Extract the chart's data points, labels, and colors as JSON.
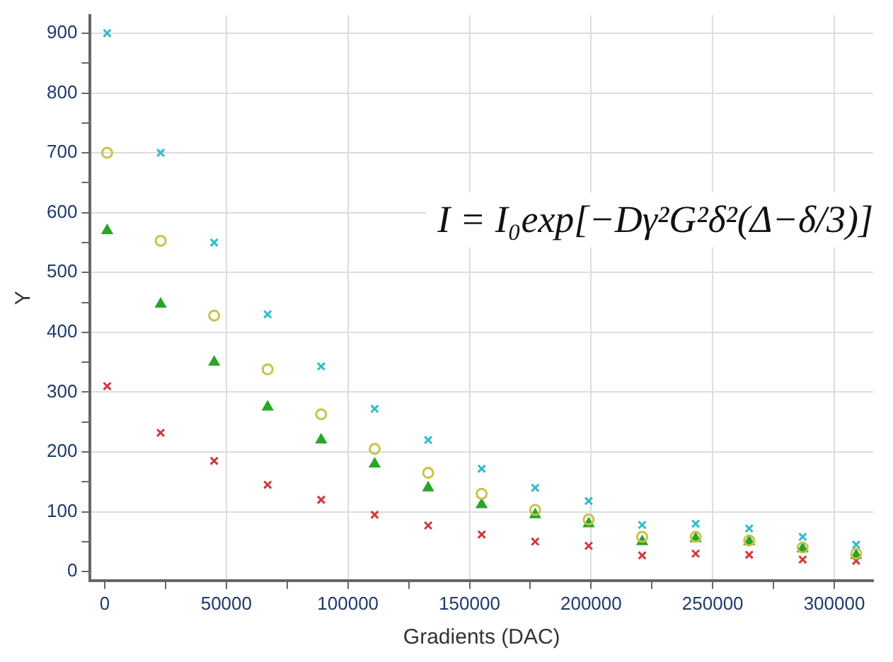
{
  "chart_data": {
    "type": "scatter",
    "xlabel": "Gradients (DAC)",
    "ylabel": "Y",
    "x": [
      1000,
      23000,
      45000,
      67000,
      89000,
      111000,
      133000,
      155000,
      177000,
      199000,
      221000,
      243000,
      265000,
      287000,
      309000
    ],
    "series": [
      {
        "color": "#2fbccc",
        "marker": "cross",
        "values": [
          900,
          700,
          550,
          430,
          343,
          272,
          220,
          172,
          140,
          118,
          78,
          80,
          72,
          58,
          45
        ]
      },
      {
        "color": "#c8c24a",
        "marker": "circle",
        "values": [
          700,
          553,
          428,
          338,
          263,
          205,
          165,
          130,
          103,
          87,
          58,
          58,
          52,
          40,
          30
        ]
      },
      {
        "color": "#2aa52a",
        "marker": "triangle",
        "values": [
          570,
          447,
          350,
          275,
          220,
          180,
          140,
          112,
          95,
          80,
          50,
          55,
          50,
          38,
          27
        ]
      },
      {
        "color": "#d03a3a",
        "marker": "cross",
        "values": [
          310,
          232,
          185,
          145,
          120,
          95,
          77,
          62,
          50,
          43,
          27,
          30,
          28,
          20,
          18
        ]
      }
    ],
    "xlim": [
      -6000,
      316000
    ],
    "xticks": [
      0,
      {
        "value": 25000,
        "label": null
      },
      50000,
      {
        "value": 75000,
        "label": null
      },
      100000,
      {
        "value": 125000,
        "label": null
      },
      150000,
      {
        "value": 175000,
        "label": null
      },
      200000,
      {
        "value": 225000,
        "label": null
      },
      250000,
      {
        "value": 275000,
        "label": null
      },
      300000
    ],
    "ylim": [
      -15,
      930
    ],
    "yticks": [
      0,
      {
        "value": 50,
        "label": null
      },
      100,
      {
        "value": 150,
        "label": null
      },
      200,
      {
        "value": 250,
        "label": null
      },
      300,
      {
        "value": 350,
        "label": null
      },
      400,
      {
        "value": 450,
        "label": null
      },
      500,
      {
        "value": 550,
        "label": null
      },
      600,
      {
        "value": 650,
        "label": null
      },
      700,
      {
        "value": 750,
        "label": null
      },
      800,
      {
        "value": 850,
        "label": null
      },
      900
    ],
    "grid": true,
    "legend": false,
    "annotations": [
      "I = I₀exp[−Dγ²G²δ²(Δ−δ/3)]"
    ]
  }
}
